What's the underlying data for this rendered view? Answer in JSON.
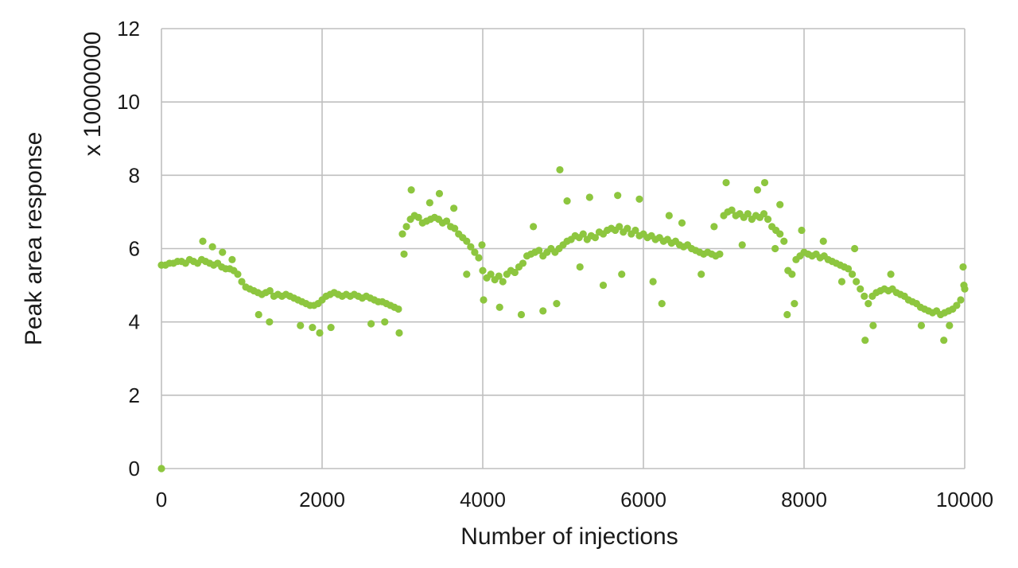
{
  "chart_data": {
    "type": "scatter",
    "title": "",
    "xlabel": "Number of injections",
    "ylabel": "Peak area response",
    "ylabel_multiplier": "x 10000000",
    "xlim": [
      0,
      10000
    ],
    "ylim": [
      0,
      12
    ],
    "x_ticks": [
      0,
      2000,
      4000,
      6000,
      8000,
      10000
    ],
    "y_ticks": [
      0,
      2,
      4,
      6,
      8,
      10,
      12
    ],
    "grid": true,
    "legend": "none",
    "colors": {
      "series": "#8dc63f",
      "grid": "#bfbfbf",
      "text": "#1a1a1a"
    },
    "series": [
      {
        "points": [
          [
            0,
            0
          ],
          [
            0,
            5.55
          ],
          [
            50,
            5.55
          ],
          [
            100,
            5.6
          ],
          [
            150,
            5.6
          ],
          [
            200,
            5.65
          ],
          [
            250,
            5.65
          ],
          [
            300,
            5.6
          ],
          [
            350,
            5.7
          ],
          [
            400,
            5.65
          ],
          [
            450,
            5.6
          ],
          [
            500,
            5.7
          ],
          [
            550,
            5.65
          ],
          [
            600,
            5.6
          ],
          [
            650,
            5.55
          ],
          [
            700,
            5.6
          ],
          [
            750,
            5.5
          ],
          [
            800,
            5.45
          ],
          [
            850,
            5.45
          ],
          [
            900,
            5.4
          ],
          [
            950,
            5.3
          ],
          [
            1000,
            5.1
          ],
          [
            1050,
            4.95
          ],
          [
            1100,
            4.9
          ],
          [
            1150,
            4.85
          ],
          [
            1200,
            4.8
          ],
          [
            1250,
            4.75
          ],
          [
            1300,
            4.8
          ],
          [
            1350,
            4.85
          ],
          [
            1400,
            4.7
          ],
          [
            1450,
            4.75
          ],
          [
            1500,
            4.7
          ],
          [
            1550,
            4.75
          ],
          [
            1600,
            4.7
          ],
          [
            1650,
            4.65
          ],
          [
            1700,
            4.6
          ],
          [
            1750,
            4.55
          ],
          [
            1800,
            4.5
          ],
          [
            1850,
            4.45
          ],
          [
            1900,
            4.45
          ],
          [
            1950,
            4.5
          ],
          [
            2000,
            4.6
          ],
          [
            2050,
            4.7
          ],
          [
            2100,
            4.75
          ],
          [
            2150,
            4.8
          ],
          [
            2200,
            4.75
          ],
          [
            2250,
            4.7
          ],
          [
            2300,
            4.75
          ],
          [
            2350,
            4.7
          ],
          [
            2400,
            4.75
          ],
          [
            2450,
            4.7
          ],
          [
            2500,
            4.65
          ],
          [
            2550,
            4.7
          ],
          [
            2600,
            4.65
          ],
          [
            2650,
            4.6
          ],
          [
            2700,
            4.55
          ],
          [
            2750,
            4.55
          ],
          [
            2800,
            4.5
          ],
          [
            2850,
            4.45
          ],
          [
            2900,
            4.4
          ],
          [
            2950,
            4.35
          ],
          [
            3000,
            6.4
          ],
          [
            3050,
            6.6
          ],
          [
            3100,
            6.8
          ],
          [
            3150,
            6.9
          ],
          [
            3200,
            6.85
          ],
          [
            3250,
            6.7
          ],
          [
            3300,
            6.75
          ],
          [
            3350,
            6.8
          ],
          [
            3400,
            6.85
          ],
          [
            3450,
            6.8
          ],
          [
            3500,
            6.7
          ],
          [
            3550,
            6.75
          ],
          [
            3600,
            6.6
          ],
          [
            3650,
            6.55
          ],
          [
            3700,
            6.4
          ],
          [
            3750,
            6.3
          ],
          [
            3800,
            6.2
          ],
          [
            3850,
            6.05
          ],
          [
            3900,
            5.9
          ],
          [
            3950,
            5.75
          ],
          [
            4000,
            5.4
          ],
          [
            4050,
            5.2
          ],
          [
            4100,
            5.3
          ],
          [
            4150,
            5.15
          ],
          [
            4200,
            5.25
          ],
          [
            4250,
            5.1
          ],
          [
            4300,
            5.3
          ],
          [
            4350,
            5.4
          ],
          [
            4400,
            5.35
          ],
          [
            4450,
            5.5
          ],
          [
            4500,
            5.6
          ],
          [
            4550,
            5.8
          ],
          [
            4600,
            5.85
          ],
          [
            4650,
            5.9
          ],
          [
            4700,
            5.95
          ],
          [
            4750,
            5.8
          ],
          [
            4800,
            5.9
          ],
          [
            4850,
            6.0
          ],
          [
            4900,
            5.9
          ],
          [
            4950,
            6.0
          ],
          [
            5000,
            6.1
          ],
          [
            5050,
            6.2
          ],
          [
            5100,
            6.25
          ],
          [
            5150,
            6.35
          ],
          [
            5200,
            6.3
          ],
          [
            5250,
            6.4
          ],
          [
            5300,
            6.25
          ],
          [
            5350,
            6.35
          ],
          [
            5400,
            6.3
          ],
          [
            5450,
            6.45
          ],
          [
            5500,
            6.4
          ],
          [
            5550,
            6.5
          ],
          [
            5600,
            6.55
          ],
          [
            5650,
            6.5
          ],
          [
            5700,
            6.6
          ],
          [
            5750,
            6.45
          ],
          [
            5800,
            6.55
          ],
          [
            5850,
            6.4
          ],
          [
            5900,
            6.5
          ],
          [
            5950,
            6.35
          ],
          [
            6000,
            6.4
          ],
          [
            6050,
            6.3
          ],
          [
            6100,
            6.35
          ],
          [
            6150,
            6.25
          ],
          [
            6200,
            6.3
          ],
          [
            6250,
            6.2
          ],
          [
            6300,
            6.25
          ],
          [
            6350,
            6.15
          ],
          [
            6400,
            6.2
          ],
          [
            6450,
            6.1
          ],
          [
            6500,
            6.05
          ],
          [
            6550,
            6.1
          ],
          [
            6600,
            6.0
          ],
          [
            6650,
            5.95
          ],
          [
            6700,
            5.9
          ],
          [
            6750,
            5.85
          ],
          [
            6800,
            5.9
          ],
          [
            6850,
            5.85
          ],
          [
            6900,
            5.8
          ],
          [
            6950,
            5.85
          ],
          [
            7000,
            6.9
          ],
          [
            7050,
            7.0
          ],
          [
            7100,
            7.05
          ],
          [
            7150,
            6.9
          ],
          [
            7200,
            6.95
          ],
          [
            7250,
            6.85
          ],
          [
            7300,
            6.95
          ],
          [
            7350,
            6.8
          ],
          [
            7400,
            6.9
          ],
          [
            7450,
            6.85
          ],
          [
            7500,
            6.95
          ],
          [
            7550,
            6.8
          ],
          [
            7600,
            6.6
          ],
          [
            7650,
            6.5
          ],
          [
            7700,
            6.4
          ],
          [
            7750,
            6.2
          ],
          [
            7800,
            5.4
          ],
          [
            7850,
            5.3
          ],
          [
            7900,
            5.7
          ],
          [
            7950,
            5.8
          ],
          [
            8000,
            5.9
          ],
          [
            8050,
            5.85
          ],
          [
            8100,
            5.8
          ],
          [
            8150,
            5.85
          ],
          [
            8200,
            5.75
          ],
          [
            8250,
            5.8
          ],
          [
            8300,
            5.7
          ],
          [
            8350,
            5.65
          ],
          [
            8400,
            5.6
          ],
          [
            8450,
            5.55
          ],
          [
            8500,
            5.5
          ],
          [
            8550,
            5.45
          ],
          [
            8600,
            5.3
          ],
          [
            8650,
            5.1
          ],
          [
            8700,
            4.9
          ],
          [
            8750,
            4.7
          ],
          [
            8800,
            4.5
          ],
          [
            8850,
            4.7
          ],
          [
            8900,
            4.8
          ],
          [
            8950,
            4.85
          ],
          [
            9000,
            4.9
          ],
          [
            9050,
            4.85
          ],
          [
            9100,
            4.9
          ],
          [
            9150,
            4.8
          ],
          [
            9200,
            4.75
          ],
          [
            9250,
            4.7
          ],
          [
            9300,
            4.6
          ],
          [
            9350,
            4.55
          ],
          [
            9400,
            4.5
          ],
          [
            9450,
            4.4
          ],
          [
            9500,
            4.35
          ],
          [
            9550,
            4.3
          ],
          [
            9600,
            4.25
          ],
          [
            9650,
            4.3
          ],
          [
            9700,
            4.2
          ],
          [
            9750,
            4.25
          ],
          [
            9800,
            4.3
          ],
          [
            9850,
            4.35
          ],
          [
            9900,
            4.45
          ],
          [
            9950,
            4.6
          ],
          [
            10000,
            4.9
          ],
          [
            515,
            6.2
          ],
          [
            635,
            6.05
          ],
          [
            760,
            5.9
          ],
          [
            880,
            5.7
          ],
          [
            1210,
            4.2
          ],
          [
            1345,
            4.0
          ],
          [
            1730,
            3.9
          ],
          [
            1880,
            3.85
          ],
          [
            1970,
            3.7
          ],
          [
            2110,
            3.85
          ],
          [
            2610,
            3.95
          ],
          [
            2780,
            4.0
          ],
          [
            2960,
            3.7
          ],
          [
            3020,
            5.85
          ],
          [
            3110,
            7.6
          ],
          [
            3340,
            7.25
          ],
          [
            3460,
            7.5
          ],
          [
            3640,
            7.1
          ],
          [
            3800,
            5.3
          ],
          [
            3990,
            6.1
          ],
          [
            4010,
            4.6
          ],
          [
            4210,
            4.4
          ],
          [
            4480,
            4.2
          ],
          [
            4630,
            6.6
          ],
          [
            4750,
            4.3
          ],
          [
            4920,
            4.5
          ],
          [
            4960,
            8.15
          ],
          [
            5050,
            7.3
          ],
          [
            5210,
            5.5
          ],
          [
            5330,
            7.4
          ],
          [
            5500,
            5.0
          ],
          [
            5680,
            7.45
          ],
          [
            5730,
            5.3
          ],
          [
            5950,
            7.35
          ],
          [
            6120,
            5.1
          ],
          [
            6230,
            4.5
          ],
          [
            6320,
            6.9
          ],
          [
            6480,
            6.7
          ],
          [
            6720,
            5.3
          ],
          [
            6880,
            6.6
          ],
          [
            7030,
            7.8
          ],
          [
            7230,
            6.1
          ],
          [
            7420,
            7.6
          ],
          [
            7510,
            7.8
          ],
          [
            7640,
            6.0
          ],
          [
            7700,
            7.2
          ],
          [
            7790,
            4.2
          ],
          [
            7880,
            4.5
          ],
          [
            7970,
            6.5
          ],
          [
            8240,
            6.2
          ],
          [
            8470,
            5.1
          ],
          [
            8630,
            6.0
          ],
          [
            8760,
            3.5
          ],
          [
            8860,
            3.9
          ],
          [
            9080,
            5.3
          ],
          [
            9460,
            3.9
          ],
          [
            9740,
            3.5
          ],
          [
            9810,
            3.9
          ],
          [
            9980,
            5.5
          ],
          [
            9990,
            5.0
          ]
        ]
      }
    ]
  }
}
